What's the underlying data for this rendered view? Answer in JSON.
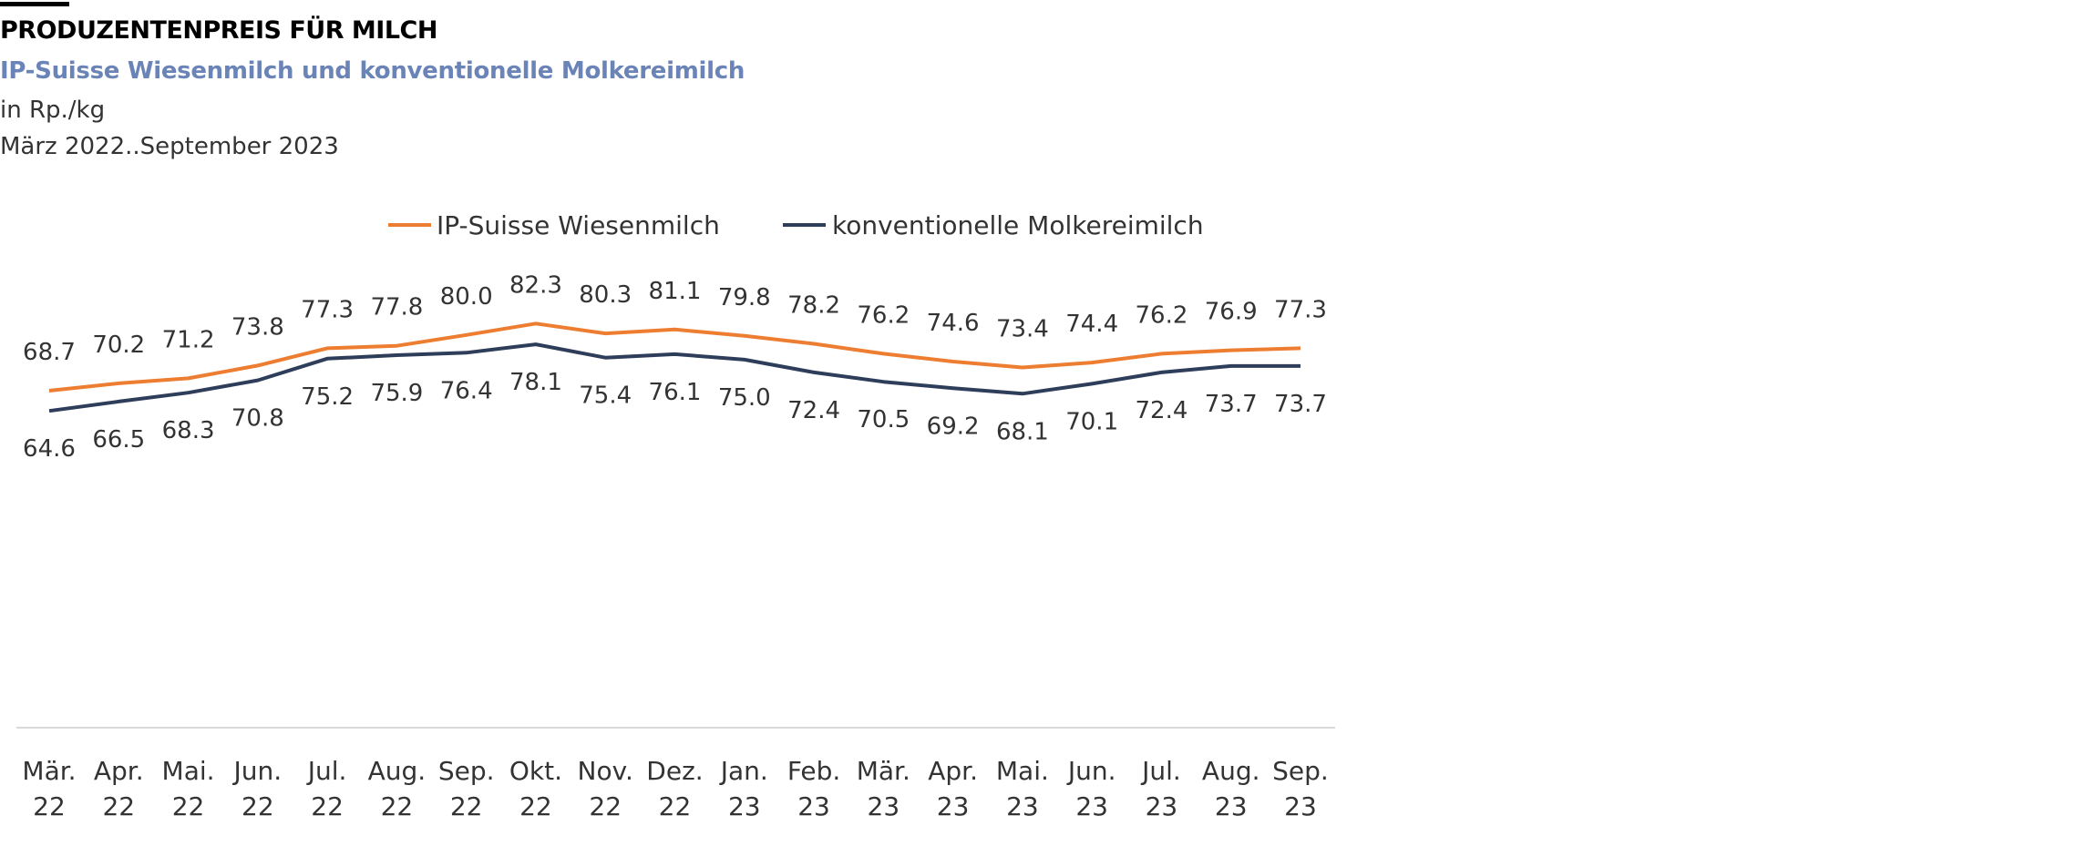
{
  "header": {
    "title": "PRODUZENTENPREIS FÜR MILCH",
    "subtitle": "IP-Suisse Wiesenmilch und konventionelle Molkereimilch",
    "unit": "in Rp./kg",
    "period": "März 2022..September 2023"
  },
  "chart_data": {
    "type": "line",
    "title": "PRODUZENTENPREIS FÜR MILCH",
    "subtitle": "IP-Suisse Wiesenmilch und konventionelle Molkereimilch",
    "ylabel": "in Rp./kg",
    "categories": [
      [
        "Mär.",
        "22"
      ],
      [
        "Apr.",
        "22"
      ],
      [
        "Mai.",
        "22"
      ],
      [
        "Jun.",
        "22"
      ],
      [
        "Jul.",
        "22"
      ],
      [
        "Aug.",
        "22"
      ],
      [
        "Sep.",
        "22"
      ],
      [
        "Okt.",
        "22"
      ],
      [
        "Nov.",
        "22"
      ],
      [
        "Dez.",
        "22"
      ],
      [
        "Jan.",
        "23"
      ],
      [
        "Feb.",
        "23"
      ],
      [
        "Mär.",
        "23"
      ],
      [
        "Apr.",
        "23"
      ],
      [
        "Mai.",
        "23"
      ],
      [
        "Jun.",
        "23"
      ],
      [
        "Jul.",
        "23"
      ],
      [
        "Aug.",
        "23"
      ],
      [
        "Sep.",
        "23"
      ]
    ],
    "series": [
      {
        "name": "IP-Suisse Wiesenmilch",
        "color": "#ed7d31",
        "label_position": "above",
        "values": [
          68.7,
          70.2,
          71.2,
          73.8,
          77.3,
          77.8,
          80.0,
          82.3,
          80.3,
          81.1,
          79.8,
          78.2,
          76.2,
          74.6,
          73.4,
          74.4,
          76.2,
          76.9,
          77.3
        ]
      },
      {
        "name": "konventionelle Molkereimilch",
        "color": "#2e3d5a",
        "label_position": "below",
        "values": [
          64.6,
          66.5,
          68.3,
          70.8,
          75.2,
          75.9,
          76.4,
          78.1,
          75.4,
          76.1,
          75.0,
          72.4,
          70.5,
          69.2,
          68.1,
          70.1,
          72.4,
          73.7,
          73.7
        ]
      }
    ],
    "legend": "top",
    "grid": false,
    "y_axis_visible": false
  }
}
